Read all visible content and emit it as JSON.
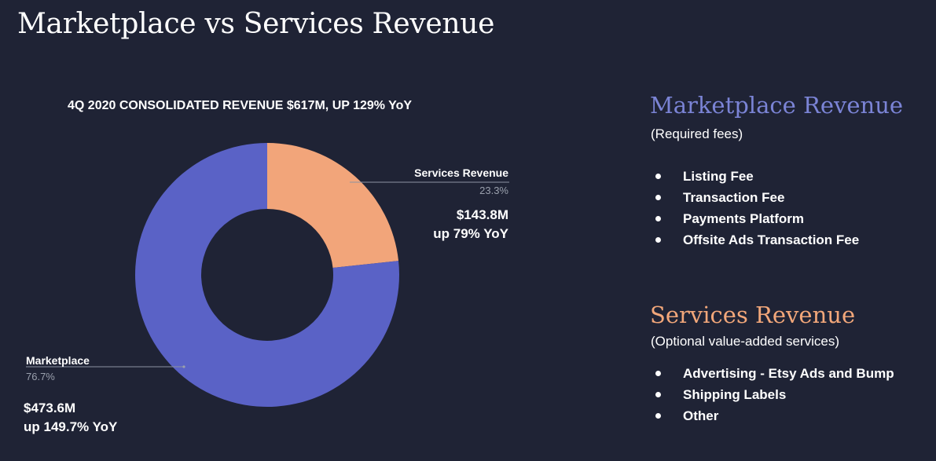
{
  "page": {
    "title": "Marketplace vs Services Revenue"
  },
  "chart_data": {
    "type": "pie",
    "style": "donut",
    "title": "4Q 2020 CONSOLIDATED REVENUE $617M, UP 129% YoY",
    "categories": [
      "Services Revenue",
      "Marketplace"
    ],
    "values": [
      23.3,
      76.7
    ],
    "value_labels": [
      "23.3%",
      "76.7%"
    ],
    "colors": [
      "#f2a57a",
      "#5a62c6"
    ],
    "annotations": [
      {
        "slice": "Services Revenue",
        "amount": "$143.8M",
        "growth": "up 79% YoY"
      },
      {
        "slice": "Marketplace",
        "amount": "$473.6M",
        "growth": "up 149.7% YoY"
      }
    ]
  },
  "marketplace_panel": {
    "heading": "Marketplace Revenue",
    "subheading": "(Required fees)",
    "items": [
      "Listing Fee",
      "Transaction Fee",
      "Payments Platform",
      "Offsite Ads Transaction Fee"
    ]
  },
  "services_panel": {
    "heading": "Services Revenue",
    "subheading": "(Optional value-added services)",
    "items": [
      "Advertising - Etsy Ads and Bump",
      "Shipping Labels",
      "Other"
    ]
  }
}
